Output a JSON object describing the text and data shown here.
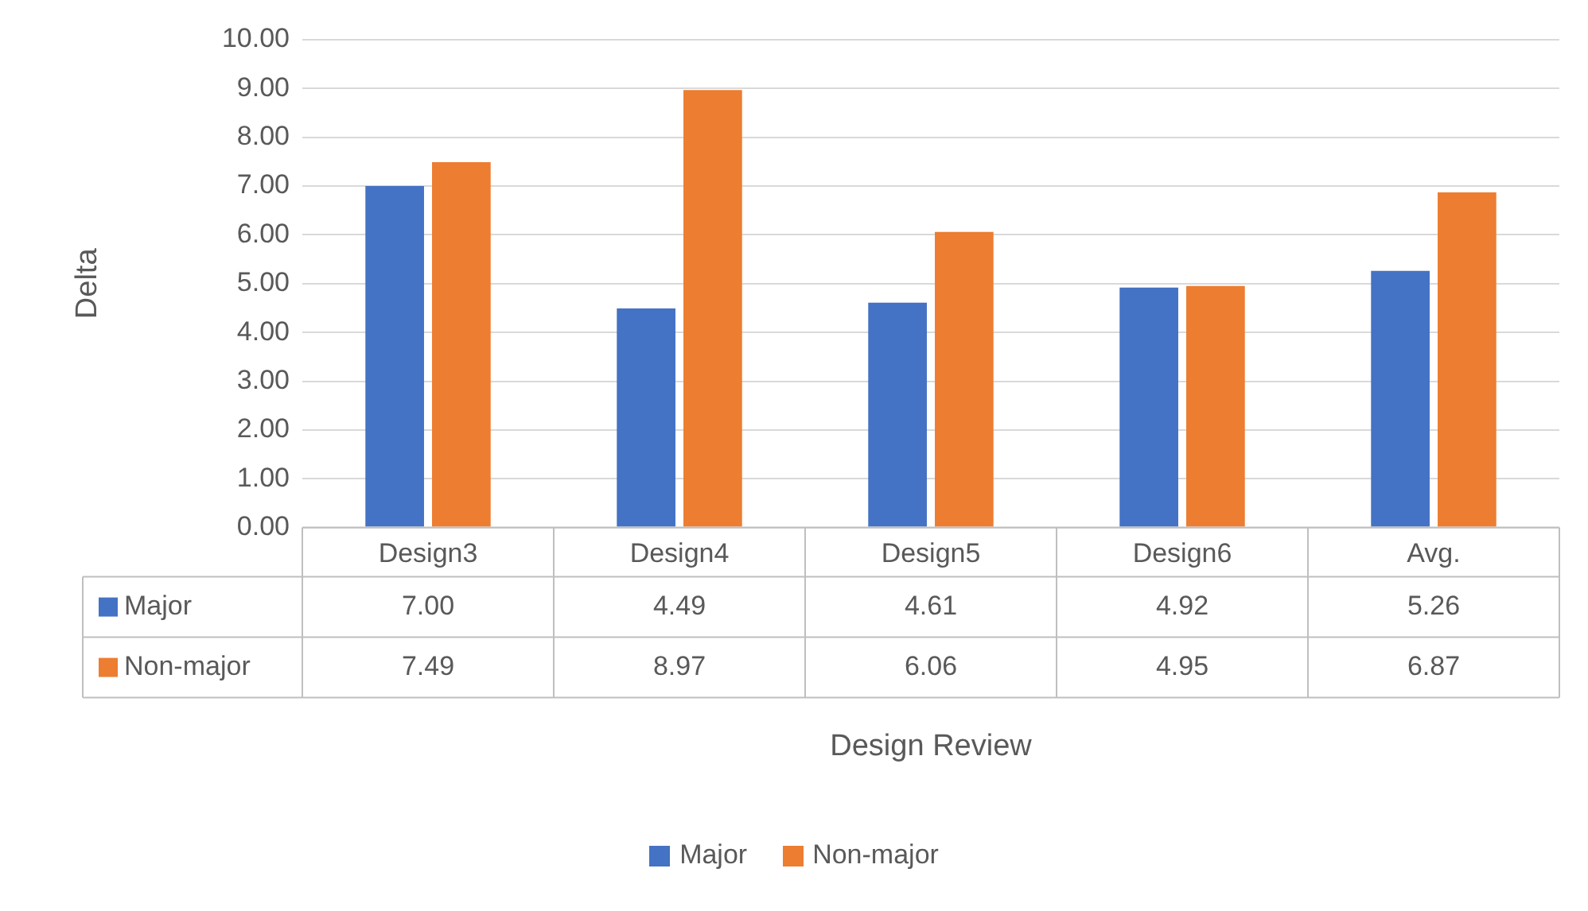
{
  "chart_data": {
    "type": "bar",
    "annotations": [
      "Design Review"
    ],
    "ylabel": "Delta",
    "categories": [
      "Design3",
      "Design4",
      "Design5",
      "Design6",
      "Avg."
    ],
    "series": [
      {
        "name": "Major",
        "color": "#4472c4",
        "values": [
          7.0,
          4.49,
          4.61,
          4.92,
          5.26
        ],
        "value_labels": [
          "7.00",
          "4.49",
          "4.61",
          "4.92",
          "5.26"
        ]
      },
      {
        "name": "Non-major",
        "color": "#ed7d31",
        "values": [
          7.49,
          8.97,
          6.06,
          4.95,
          6.87
        ],
        "value_labels": [
          "7.49",
          "8.97",
          "6.06",
          "4.95",
          "6.87"
        ]
      }
    ],
    "ylim": [
      0,
      10
    ],
    "yticks": [
      {
        "value": 0,
        "label": "0.00"
      },
      {
        "value": 1,
        "label": "1.00"
      },
      {
        "value": 2,
        "label": "2.00"
      },
      {
        "value": 3,
        "label": "3.00"
      },
      {
        "value": 4,
        "label": "4.00"
      },
      {
        "value": 5,
        "label": "5.00"
      },
      {
        "value": 6,
        "label": "6.00"
      },
      {
        "value": 7,
        "label": "7.00"
      },
      {
        "value": 8,
        "label": "8.00"
      },
      {
        "value": 9,
        "label": "9.00"
      },
      {
        "value": 10,
        "label": "10.00"
      }
    ],
    "grid": "y",
    "legend": "bottom"
  }
}
